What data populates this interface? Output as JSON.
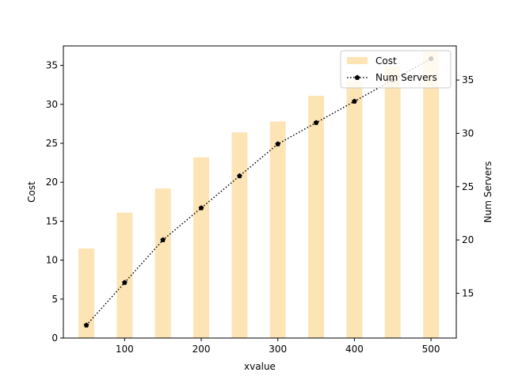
{
  "chart_data": {
    "type": "bar+line",
    "x": [
      50,
      100,
      150,
      200,
      250,
      300,
      350,
      400,
      450,
      500
    ],
    "xlabel": "xvalue",
    "xlim": [
      20,
      533
    ],
    "xticks": [
      100,
      200,
      300,
      400,
      500
    ],
    "left_axis": {
      "label": "Cost",
      "lim": [
        0,
        37.5
      ],
      "ticks": [
        0,
        5,
        10,
        15,
        20,
        25,
        30,
        35
      ]
    },
    "right_axis": {
      "label": "Num Servers",
      "lim": [
        10.8,
        38.2
      ],
      "ticks": [
        15,
        20,
        25,
        30,
        35
      ]
    },
    "series": [
      {
        "name": "Cost",
        "kind": "bar",
        "axis": "left",
        "color": "#fde4b5",
        "values": [
          11.5,
          16.1,
          19.2,
          23.2,
          26.4,
          27.8,
          31.1,
          33.0,
          34.9,
          36.8
        ]
      },
      {
        "name": "Num Servers",
        "kind": "line",
        "axis": "right",
        "color": "#000000",
        "linestyle": "dotted",
        "marker": "pentagon",
        "values": [
          12,
          16,
          20,
          23,
          26,
          29,
          31,
          33,
          35,
          37
        ]
      }
    ],
    "legend": {
      "position": "top-right",
      "entries": [
        "Cost",
        "Num Servers"
      ]
    },
    "grid": false
  }
}
